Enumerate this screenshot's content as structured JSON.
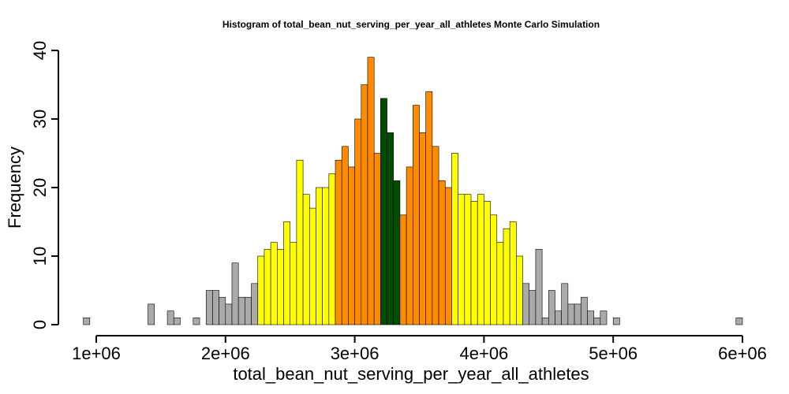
{
  "chart_data": {
    "type": "bar",
    "title": "Histogram of  total_bean_nut_serving_per_year_all_athletes  Monte Carlo Simulation",
    "xlabel": "total_bean_nut_serving_per_year_all_athletes",
    "ylabel": "Frequency",
    "xlim": [
      1000000,
      6000000
    ],
    "ylim": [
      0,
      40
    ],
    "x_ticks": [
      1000000,
      2000000,
      3000000,
      4000000,
      5000000,
      6000000
    ],
    "x_tick_labels": [
      "1e+06",
      "2e+06",
      "3e+06",
      "4e+06",
      "5e+06",
      "6e+06"
    ],
    "y_ticks": [
      0,
      10,
      20,
      30,
      40
    ],
    "y_tick_labels": [
      "0",
      "10",
      "20",
      "30",
      "40"
    ],
    "bin_start": 900000,
    "bin_width": 50000,
    "values": [
      1,
      0,
      0,
      0,
      0,
      0,
      0,
      0,
      0,
      0,
      3,
      0,
      0,
      2,
      1,
      0,
      0,
      1,
      0,
      5,
      5,
      4,
      3,
      9,
      4,
      4,
      6,
      10,
      11,
      12,
      11,
      15,
      12,
      24,
      19,
      17,
      20,
      20,
      22,
      24,
      26,
      23,
      30,
      35,
      39,
      25,
      33,
      28,
      21,
      16,
      23,
      32,
      28,
      34,
      26,
      21,
      20,
      25,
      19,
      19,
      18,
      19,
      18,
      16,
      12,
      14,
      15,
      10,
      6,
      5,
      11,
      1,
      5,
      2,
      6,
      3,
      3,
      4,
      2,
      1,
      2,
      0,
      1,
      0,
      0,
      0,
      0,
      0,
      0,
      0,
      0,
      0,
      0,
      0,
      0,
      0,
      0,
      0,
      0,
      0,
      0,
      1
    ],
    "colors": {
      "tail": "#aaaaaa",
      "outer": "#ffff00",
      "middle": "#ff8c00",
      "center": "#004d00"
    },
    "color_bands": [
      {
        "from": 0,
        "to": 26,
        "color": "tail"
      },
      {
        "from": 27,
        "to": 38,
        "color": "outer"
      },
      {
        "from": 39,
        "to": 45,
        "color": "middle"
      },
      {
        "from": 46,
        "to": 48,
        "color": "center"
      },
      {
        "from": 49,
        "to": 56,
        "color": "middle"
      },
      {
        "from": 57,
        "to": 67,
        "color": "outer"
      },
      {
        "from": 68,
        "to": 101,
        "color": "tail"
      }
    ],
    "grid": false,
    "legend": "none"
  }
}
